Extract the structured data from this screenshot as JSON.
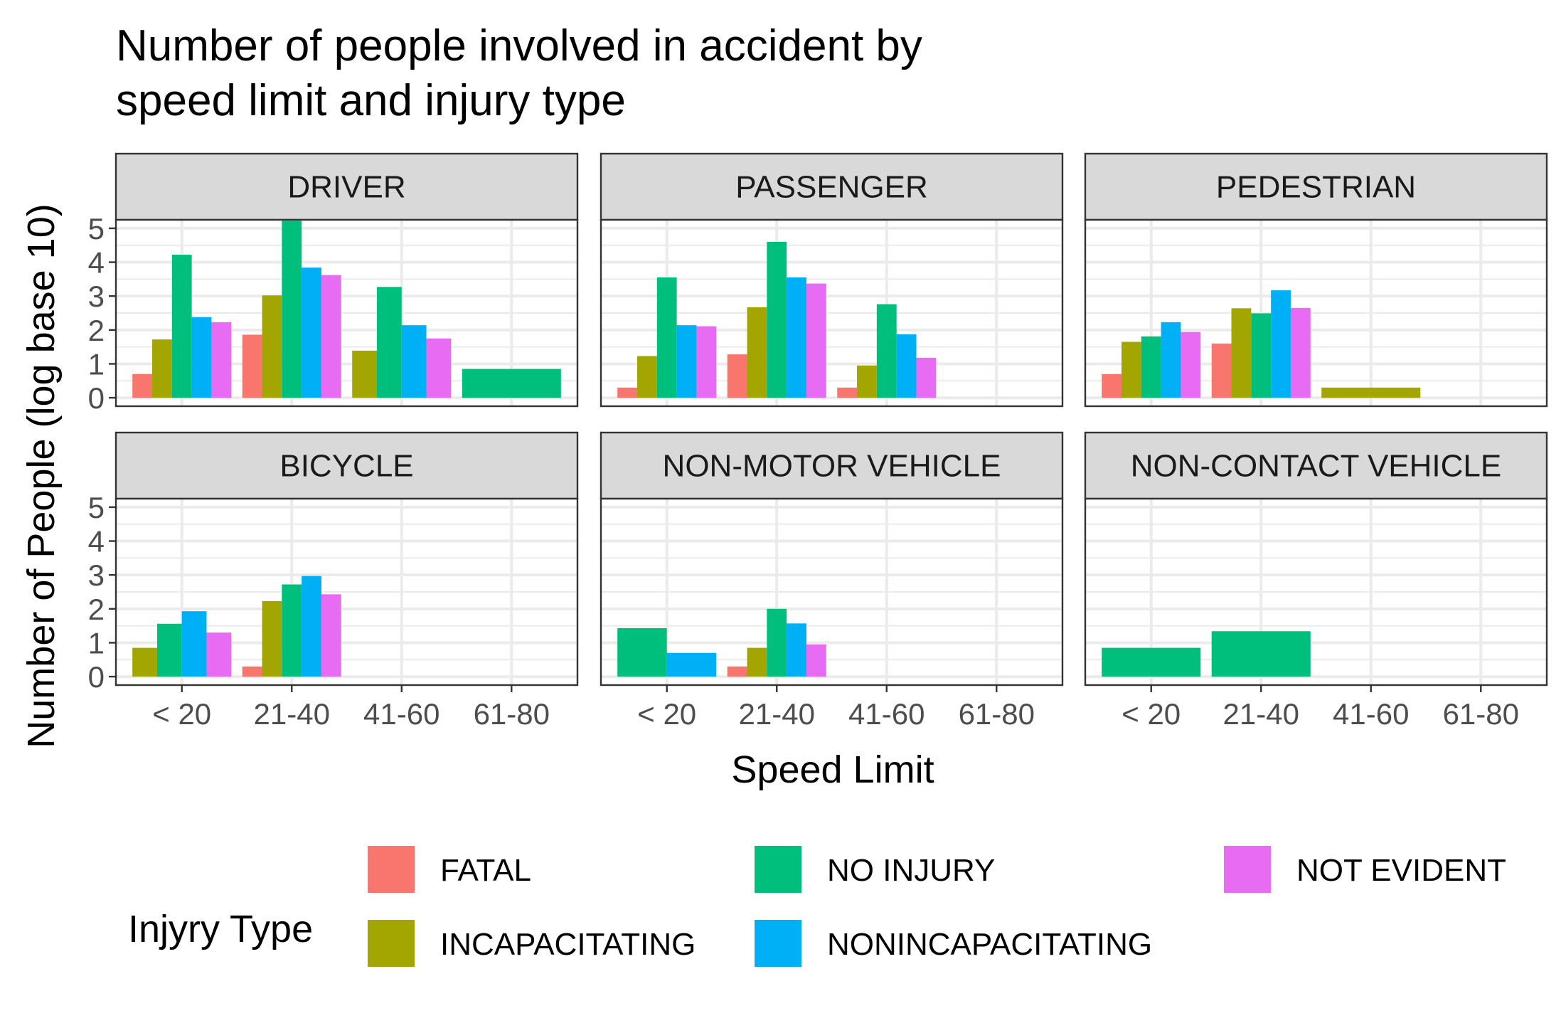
{
  "chart_data": {
    "type": "bar",
    "title": [
      "Number of people involved in accident by",
      "speed limit and injury type"
    ],
    "xlabel": "Speed Limit",
    "ylabel": "Number of People (log base 10)",
    "ylim": [
      0,
      5
    ],
    "yticks": [
      0,
      1,
      2,
      3,
      4,
      5
    ],
    "categories": [
      "< 20",
      "21-40",
      "41-60",
      "61-80"
    ],
    "legend": {
      "title": "Injyry Type",
      "position": "bottom",
      "entries": [
        {
          "name": "FATAL",
          "color": "#F8766D"
        },
        {
          "name": "INCAPACITATING",
          "color": "#A3A500"
        },
        {
          "name": "NO INJURY",
          "color": "#00BF7D"
        },
        {
          "name": "NONINCAPACITATING",
          "color": "#00B0F6"
        },
        {
          "name": "NOT EVIDENT",
          "color": "#E76BF3"
        }
      ]
    },
    "panels": [
      {
        "name": "DRIVER",
        "groups": [
          {
            "category": "< 20",
            "bars": [
              {
                "type": "FATAL",
                "value": 0.7
              },
              {
                "type": "INCAPACITATING",
                "value": 1.72
              },
              {
                "type": "NO INJURY",
                "value": 4.22
              },
              {
                "type": "NONINCAPACITATING",
                "value": 2.38
              },
              {
                "type": "NOT EVIDENT",
                "value": 2.23
              }
            ]
          },
          {
            "category": "21-40",
            "bars": [
              {
                "type": "FATAL",
                "value": 1.86
              },
              {
                "type": "INCAPACITATING",
                "value": 3.02
              },
              {
                "type": "NO INJURY",
                "value": 5.22
              },
              {
                "type": "NONINCAPACITATING",
                "value": 3.84
              },
              {
                "type": "NOT EVIDENT",
                "value": 3.62
              }
            ]
          },
          {
            "category": "41-60",
            "bars": [
              {
                "type": "INCAPACITATING",
                "value": 1.39
              },
              {
                "type": "NO INJURY",
                "value": 3.27
              },
              {
                "type": "NONINCAPACITATING",
                "value": 2.14
              },
              {
                "type": "NOT EVIDENT",
                "value": 1.75
              }
            ]
          },
          {
            "category": "61-80",
            "bars": [
              {
                "type": "NO INJURY",
                "value": 0.85
              }
            ]
          }
        ]
      },
      {
        "name": "PASSENGER",
        "groups": [
          {
            "category": "< 20",
            "bars": [
              {
                "type": "FATAL",
                "value": 0.3
              },
              {
                "type": "INCAPACITATING",
                "value": 1.23
              },
              {
                "type": "NO INJURY",
                "value": 3.55
              },
              {
                "type": "NONINCAPACITATING",
                "value": 2.14
              },
              {
                "type": "NOT EVIDENT",
                "value": 2.11
              }
            ]
          },
          {
            "category": "21-40",
            "bars": [
              {
                "type": "FATAL",
                "value": 1.28
              },
              {
                "type": "INCAPACITATING",
                "value": 2.67
              },
              {
                "type": "NO INJURY",
                "value": 4.6
              },
              {
                "type": "NONINCAPACITATING",
                "value": 3.55
              },
              {
                "type": "NOT EVIDENT",
                "value": 3.37
              }
            ]
          },
          {
            "category": "41-60",
            "bars": [
              {
                "type": "FATAL",
                "value": 0.3
              },
              {
                "type": "INCAPACITATING",
                "value": 0.95
              },
              {
                "type": "NO INJURY",
                "value": 2.76
              },
              {
                "type": "NONINCAPACITATING",
                "value": 1.87
              },
              {
                "type": "NOT EVIDENT",
                "value": 1.18
              }
            ]
          }
        ]
      },
      {
        "name": "PEDESTRIAN",
        "groups": [
          {
            "category": "< 20",
            "bars": [
              {
                "type": "FATAL",
                "value": 0.7
              },
              {
                "type": "INCAPACITATING",
                "value": 1.65
              },
              {
                "type": "NO INJURY",
                "value": 1.81
              },
              {
                "type": "NONINCAPACITATING",
                "value": 2.23
              },
              {
                "type": "NOT EVIDENT",
                "value": 1.94
              }
            ]
          },
          {
            "category": "21-40",
            "bars": [
              {
                "type": "FATAL",
                "value": 1.6
              },
              {
                "type": "INCAPACITATING",
                "value": 2.64
              },
              {
                "type": "NO INJURY",
                "value": 2.49
              },
              {
                "type": "NONINCAPACITATING",
                "value": 3.17
              },
              {
                "type": "NOT EVIDENT",
                "value": 2.65
              }
            ]
          },
          {
            "category": "41-60",
            "bars": [
              {
                "type": "INCAPACITATING",
                "value": 0.3
              }
            ]
          }
        ]
      },
      {
        "name": "BICYCLE",
        "groups": [
          {
            "category": "< 20",
            "bars": [
              {
                "type": "INCAPACITATING",
                "value": 0.85
              },
              {
                "type": "NO INJURY",
                "value": 1.56
              },
              {
                "type": "NONINCAPACITATING",
                "value": 1.93
              },
              {
                "type": "NOT EVIDENT",
                "value": 1.3
              }
            ]
          },
          {
            "category": "21-40",
            "bars": [
              {
                "type": "FATAL",
                "value": 0.3
              },
              {
                "type": "INCAPACITATING",
                "value": 2.23
              },
              {
                "type": "NO INJURY",
                "value": 2.72
              },
              {
                "type": "NONINCAPACITATING",
                "value": 2.97
              },
              {
                "type": "NOT EVIDENT",
                "value": 2.43
              }
            ]
          }
        ]
      },
      {
        "name": "NON-MOTOR VEHICLE",
        "groups": [
          {
            "category": "< 20",
            "bars": [
              {
                "type": "NO INJURY",
                "value": 1.43
              },
              {
                "type": "NONINCAPACITATING",
                "value": 0.7
              }
            ]
          },
          {
            "category": "21-40",
            "bars": [
              {
                "type": "FATAL",
                "value": 0.3
              },
              {
                "type": "INCAPACITATING",
                "value": 0.85
              },
              {
                "type": "NO INJURY",
                "value": 2.0
              },
              {
                "type": "NONINCAPACITATING",
                "value": 1.57
              },
              {
                "type": "NOT EVIDENT",
                "value": 0.95
              }
            ]
          }
        ]
      },
      {
        "name": "NON-CONTACT VEHICLE",
        "groups": [
          {
            "category": "< 20",
            "bars": [
              {
                "type": "NO INJURY",
                "value": 0.85
              }
            ]
          },
          {
            "category": "21-40",
            "bars": [
              {
                "type": "NO INJURY",
                "value": 1.34
              }
            ]
          }
        ]
      }
    ]
  }
}
